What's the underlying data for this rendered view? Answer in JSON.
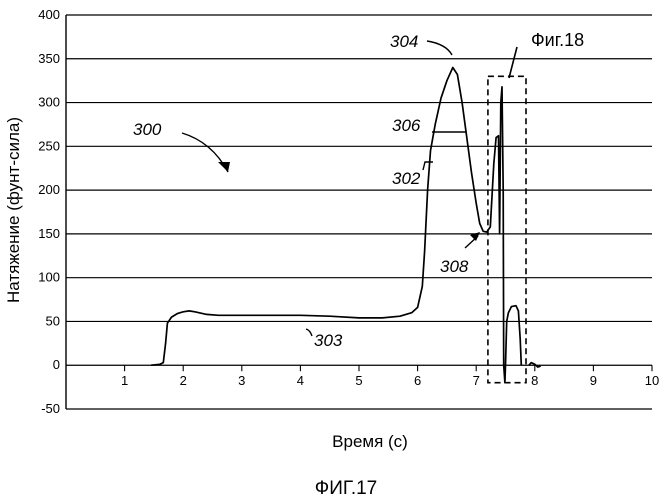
{
  "chart_data": {
    "type": "line",
    "xlabel": "Время  (с)",
    "ylabel": "Натяжение  (фунт-сила)",
    "caption": "ФИГ.17",
    "xlim": [
      0,
      10
    ],
    "ylim": [
      -50,
      400
    ],
    "x_ticks": [
      "1",
      "2",
      "3",
      "4",
      "5",
      "6",
      "7",
      "8",
      "9",
      "10"
    ],
    "y_ticks": [
      "400",
      "350",
      "300",
      "250",
      "200",
      "150",
      "100",
      "50",
      "0",
      "-50"
    ],
    "grid": "horizontal",
    "series": [
      {
        "segments": [
          [
            [
              1.45,
              0
            ],
            [
              1.6,
              1
            ],
            [
              1.66,
              3
            ],
            [
              1.7,
              25
            ],
            [
              1.73,
              48
            ],
            [
              1.8,
              55
            ],
            [
              1.9,
              59
            ],
            [
              2.0,
              61
            ],
            [
              2.1,
              62
            ],
            [
              2.2,
              61
            ],
            [
              2.4,
              58
            ],
            [
              2.6,
              57
            ],
            [
              3.0,
              57
            ],
            [
              3.5,
              57
            ],
            [
              4.0,
              57
            ],
            [
              4.5,
              56
            ],
            [
              5.0,
              54
            ],
            [
              5.4,
              54
            ],
            [
              5.7,
              56
            ],
            [
              5.9,
              60
            ],
            [
              6.0,
              66
            ],
            [
              6.08,
              90
            ],
            [
              6.12,
              130
            ],
            [
              6.17,
              200
            ],
            [
              6.22,
              245
            ],
            [
              6.3,
              275
            ],
            [
              6.4,
              305
            ],
            [
              6.5,
              325
            ],
            [
              6.6,
              340
            ],
            [
              6.68,
              332
            ],
            [
              6.76,
              300
            ],
            [
              6.84,
              260
            ],
            [
              6.92,
              220
            ],
            [
              7.0,
              185
            ],
            [
              7.06,
              162
            ],
            [
              7.12,
              153
            ],
            [
              7.18,
              152
            ],
            [
              7.24,
              158
            ],
            [
              7.3,
              230
            ],
            [
              7.34,
              260
            ],
            [
              7.38,
              262
            ],
            [
              7.4,
              150
            ],
            [
              7.42,
              300
            ],
            [
              7.44,
              318
            ],
            [
              7.46,
              200
            ],
            [
              7.47,
              0
            ],
            [
              7.49,
              -20
            ],
            [
              7.5,
              0
            ],
            [
              7.52,
              50
            ],
            [
              7.55,
              60
            ],
            [
              7.6,
              67
            ],
            [
              7.68,
              68
            ],
            [
              7.72,
              62
            ],
            [
              7.75,
              30
            ],
            [
              7.77,
              0
            ]
          ],
          [
            [
              7.9,
              0
            ],
            [
              7.94,
              3
            ],
            [
              8.0,
              1
            ],
            [
              8.05,
              -2
            ],
            [
              8.1,
              -1
            ]
          ]
        ]
      }
    ],
    "annotations": [
      {
        "text": "300",
        "target": "curve"
      },
      {
        "text": "302",
        "target": "rising edge"
      },
      {
        "text": "303",
        "target": "plateau"
      },
      {
        "text": "304",
        "target": "peak"
      },
      {
        "text": "306",
        "target": "falling edge"
      },
      {
        "text": "308",
        "target": "valley"
      }
    ],
    "callout": {
      "text": "Фиг.18",
      "x_range": [
        7.2,
        7.85
      ],
      "y_range": [
        -20,
        330
      ]
    }
  }
}
